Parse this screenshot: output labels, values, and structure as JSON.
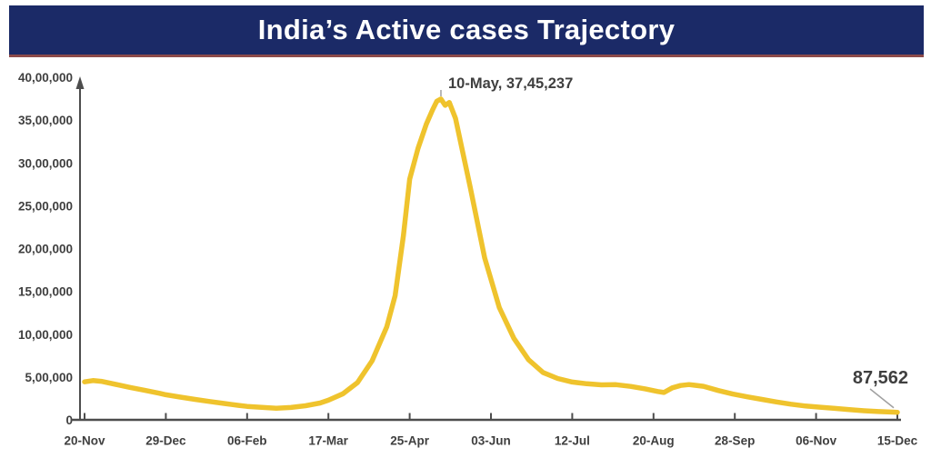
{
  "header": {
    "title": "India’s Active cases Trajectory"
  },
  "theme": {
    "banner_bg": "#1b2a67",
    "banner_underline": "#8c4a4a",
    "banner_text": "#ffffff",
    "line_color": "#efc32d",
    "axis_color": "#4d4d4d",
    "label_color": "#3f3f3f",
    "annotation_color": "#3f3f3f",
    "leader_color": "#a0a0a0",
    "background": "#ffffff"
  },
  "chart_data": {
    "type": "line",
    "title": "India’s Active cases Trajectory",
    "series_name": "Active cases",
    "xlabel": "",
    "ylabel": "",
    "grid": false,
    "legend": "none",
    "ylim": [
      0,
      4000000
    ],
    "x_range_days": [
      0,
      390
    ],
    "y_ticks": [
      {
        "value": 0,
        "label": "0"
      },
      {
        "value": 500000,
        "label": "5,00,000"
      },
      {
        "value": 1000000,
        "label": "10,00,000"
      },
      {
        "value": 1500000,
        "label": "15,00,000"
      },
      {
        "value": 2000000,
        "label": "20,00,000"
      },
      {
        "value": 2500000,
        "label": "25,00,000"
      },
      {
        "value": 3000000,
        "label": "30,00,000"
      },
      {
        "value": 3500000,
        "label": "35,00,000"
      },
      {
        "value": 4000000,
        "label": "40,00,000"
      }
    ],
    "x_ticks": [
      {
        "day": 0,
        "label": "20-Nov"
      },
      {
        "day": 39,
        "label": "29-Dec"
      },
      {
        "day": 78,
        "label": "06-Feb"
      },
      {
        "day": 117,
        "label": "17-Mar"
      },
      {
        "day": 156,
        "label": "25-Apr"
      },
      {
        "day": 195,
        "label": "03-Jun"
      },
      {
        "day": 234,
        "label": "12-Jul"
      },
      {
        "day": 273,
        "label": "20-Aug"
      },
      {
        "day": 312,
        "label": "28-Sep"
      },
      {
        "day": 351,
        "label": "06-Nov"
      },
      {
        "day": 390,
        "label": "15-Dec"
      }
    ],
    "points": [
      [
        "20-Nov",
        0,
        443000
      ],
      [
        "24-Nov",
        4,
        458000
      ],
      [
        "28-Nov",
        8,
        450000
      ],
      [
        "05-Dec",
        15,
        414000
      ],
      [
        "12-Dec",
        22,
        378000
      ],
      [
        "19-Dec",
        29,
        344000
      ],
      [
        "26-Dec",
        36,
        310000
      ],
      [
        "29-Dec",
        39,
        293000
      ],
      [
        "05-Jan",
        46,
        265000
      ],
      [
        "12-Jan",
        53,
        239000
      ],
      [
        "19-Jan",
        60,
        214000
      ],
      [
        "26-Jan",
        67,
        191000
      ],
      [
        "02-Feb",
        74,
        169000
      ],
      [
        "06-Feb",
        78,
        157000
      ],
      [
        "13-Feb",
        85,
        145000
      ],
      [
        "20-Feb",
        92,
        136000
      ],
      [
        "27-Feb",
        99,
        144000
      ],
      [
        "06-Mar",
        106,
        164000
      ],
      [
        "13-Mar",
        113,
        196000
      ],
      [
        "17-Mar",
        117,
        229000
      ],
      [
        "24-Mar",
        124,
        304000
      ],
      [
        "31-Mar",
        131,
        436000
      ],
      [
        "07-Apr",
        138,
        690000
      ],
      [
        "14-Apr",
        145,
        1085000
      ],
      [
        "18-Apr",
        149,
        1450000
      ],
      [
        "22-Apr",
        153,
        2150000
      ],
      [
        "25-Apr",
        156,
        2810000
      ],
      [
        "29-Apr",
        160,
        3170000
      ],
      [
        "03-May",
        164,
        3452000
      ],
      [
        "06-May",
        167,
        3620000
      ],
      [
        "08-May",
        169,
        3720000
      ],
      [
        "10-May",
        171,
        3745237
      ],
      [
        "12-May",
        173,
        3672000
      ],
      [
        "14-May",
        175,
        3705000
      ],
      [
        "17-May",
        178,
        3520000
      ],
      [
        "24-May",
        185,
        2720000
      ],
      [
        "31-May",
        192,
        1890000
      ],
      [
        "07-Jun",
        199,
        1310000
      ],
      [
        "14-Jun",
        206,
        952000
      ],
      [
        "21-Jun",
        213,
        702000
      ],
      [
        "28-Jun",
        220,
        553000
      ],
      [
        "05-Jul",
        227,
        483000
      ],
      [
        "12-Jul",
        234,
        441000
      ],
      [
        "19-Jul",
        241,
        421000
      ],
      [
        "26-Jul",
        248,
        409000
      ],
      [
        "02-Aug",
        255,
        411000
      ],
      [
        "09-Aug",
        262,
        390000
      ],
      [
        "16-Aug",
        269,
        362000
      ],
      [
        "22-Aug",
        275,
        331000
      ],
      [
        "25-Aug",
        278,
        319000
      ],
      [
        "29-Aug",
        282,
        374000
      ],
      [
        "02-Sep",
        286,
        401000
      ],
      [
        "06-Sep",
        290,
        412000
      ],
      [
        "13-Sep",
        297,
        391000
      ],
      [
        "20-Sep",
        304,
        343000
      ],
      [
        "27-Sep",
        311,
        301000
      ],
      [
        "04-Oct",
        318,
        268000
      ],
      [
        "11-Oct",
        325,
        239000
      ],
      [
        "18-Oct",
        332,
        209000
      ],
      [
        "25-Oct",
        339,
        183000
      ],
      [
        "01-Nov",
        346,
        161000
      ],
      [
        "08-Nov",
        353,
        148000
      ],
      [
        "15-Nov",
        360,
        134000
      ],
      [
        "22-Nov",
        367,
        119000
      ],
      [
        "29-Nov",
        374,
        106000
      ],
      [
        "06-Dec",
        381,
        97000
      ],
      [
        "13-Dec",
        388,
        90000
      ],
      [
        "15-Dec",
        390,
        87562
      ]
    ],
    "annotations": [
      {
        "name": "peak",
        "label": "10-May, 37,45,237",
        "day": 171,
        "value": 3745237
      },
      {
        "name": "latest",
        "label": "87,562",
        "day": 390,
        "value": 87562
      }
    ]
  }
}
